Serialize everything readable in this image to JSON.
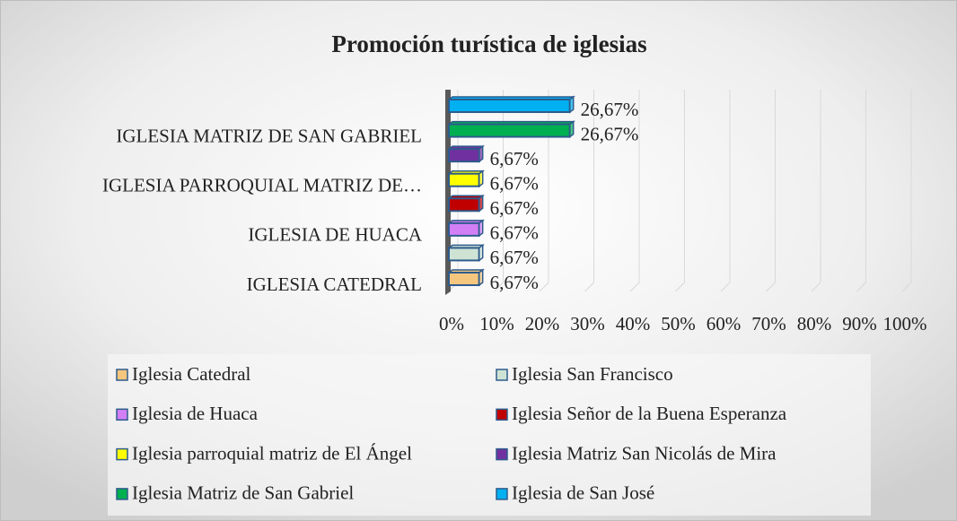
{
  "chart_data": {
    "type": "bar",
    "orientation": "horizontal",
    "title": "Promoción turística de iglesias",
    "categories": [
      "IGLESIA CATEDRAL",
      null,
      "IGLESIA DE HUACA",
      null,
      "IGLESIA PARROQUIAL MATRIZ DE…",
      null,
      "IGLESIA MATRIZ DE SAN GABRIEL",
      null
    ],
    "values": [
      6.67,
      6.67,
      6.67,
      6.67,
      6.67,
      6.67,
      26.67,
      26.67
    ],
    "value_labels": [
      "6,67%",
      "6,67%",
      "6,67%",
      "6,67%",
      "6,67%",
      "6,67%",
      "26,67%",
      "26,67%"
    ],
    "colors": [
      "#f5c77e",
      "#cfe3d5",
      "#d27ff5",
      "#c00000",
      "#ffff00",
      "#7030a0",
      "#00b050",
      "#00b0f0"
    ],
    "legend": [
      "Iglesia Catedral",
      "Iglesia San Francisco",
      "Iglesia de Huaca",
      "Iglesia Señor de la Buena Esperanza",
      "Iglesia parroquial matriz de El Ángel",
      "Iglesia Matriz San Nicolás de Mira",
      "Iglesia Matriz de San Gabriel",
      "Iglesia de San José"
    ],
    "xlim": [
      0,
      100
    ],
    "xticks": [
      {
        "value": 0,
        "label": "0%"
      },
      {
        "value": 10,
        "label": "10%"
      },
      {
        "value": 20,
        "label": "20%"
      },
      {
        "value": 30,
        "label": "30%"
      },
      {
        "value": 40,
        "label": "40%"
      },
      {
        "value": 50,
        "label": "50%"
      },
      {
        "value": 60,
        "label": "60%"
      },
      {
        "value": 70,
        "label": "70%"
      },
      {
        "value": 80,
        "label": "80%"
      },
      {
        "value": 90,
        "label": "90%"
      },
      {
        "value": 100,
        "label": "100%"
      }
    ],
    "grid": true
  }
}
